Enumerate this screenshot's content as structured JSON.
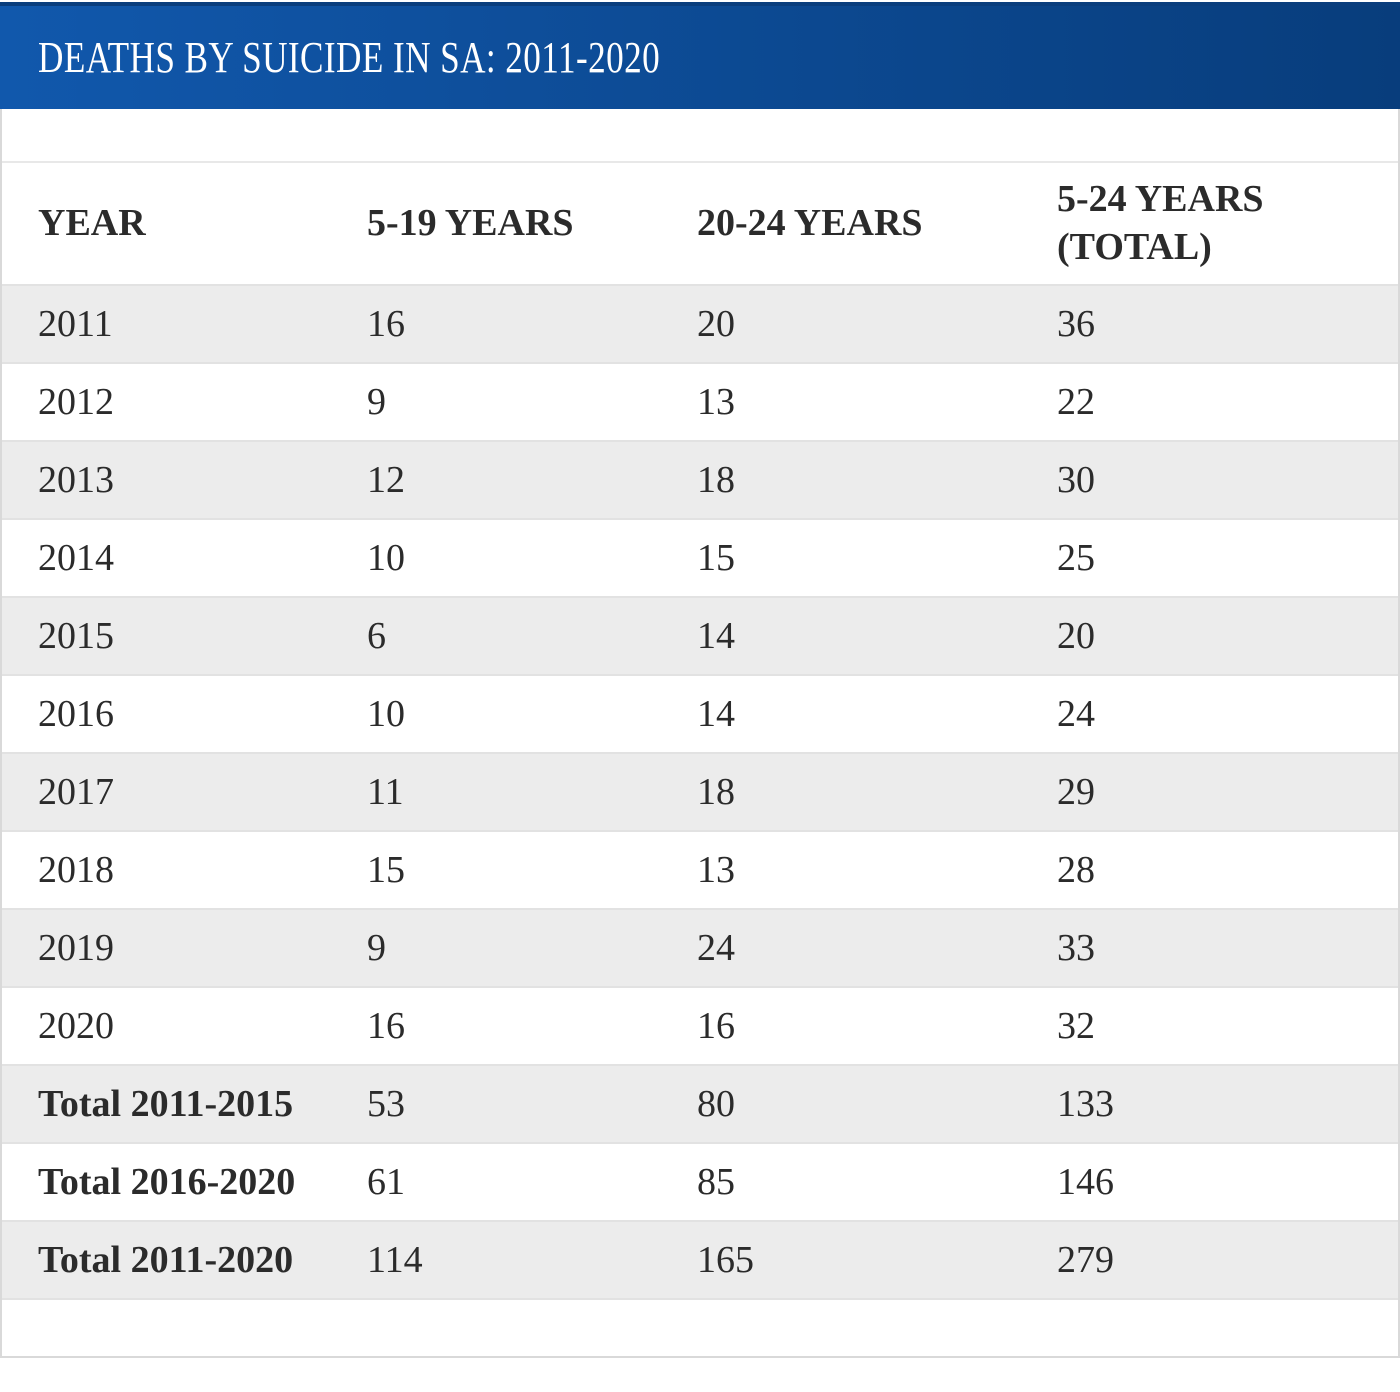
{
  "title_bar": {
    "title": "DEATHS BY SUICIDE IN SA: 2011-2020"
  },
  "colors": {
    "title_bar_gradient_start": "#1158ac",
    "title_bar_gradient_end": "#083d7c",
    "title_bar_top_border": "#0a3e7d",
    "title_text": "#ffffff",
    "alt_row_background": "#ececec",
    "row_divider": "#e2e2e2",
    "outer_border": "#d9d9d9",
    "table_text": "#2b2b2b"
  },
  "chart_data": {
    "type": "table",
    "title": "DEATHS BY SUICIDE IN SA: 2011-2020",
    "columns": [
      "YEAR",
      "5-19 YEARS",
      "20-24 YEARS",
      "5-24 YEARS (TOTAL)"
    ],
    "rows": [
      {
        "label": "2011",
        "values": [
          16,
          20,
          36
        ],
        "is_total": false
      },
      {
        "label": "2012",
        "values": [
          9,
          13,
          22
        ],
        "is_total": false
      },
      {
        "label": "2013",
        "values": [
          12,
          18,
          30
        ],
        "is_total": false
      },
      {
        "label": "2014",
        "values": [
          10,
          15,
          25
        ],
        "is_total": false
      },
      {
        "label": "2015",
        "values": [
          6,
          14,
          20
        ],
        "is_total": false
      },
      {
        "label": "2016",
        "values": [
          10,
          14,
          24
        ],
        "is_total": false
      },
      {
        "label": "2017",
        "values": [
          11,
          18,
          29
        ],
        "is_total": false
      },
      {
        "label": "2018",
        "values": [
          15,
          13,
          28
        ],
        "is_total": false
      },
      {
        "label": "2019",
        "values": [
          9,
          24,
          33
        ],
        "is_total": false
      },
      {
        "label": "2020",
        "values": [
          16,
          16,
          32
        ],
        "is_total": false
      },
      {
        "label": "Total 2011-2015",
        "values": [
          53,
          80,
          133
        ],
        "is_total": true
      },
      {
        "label": "Total 2016-2020",
        "values": [
          61,
          85,
          146
        ],
        "is_total": true
      },
      {
        "label": "Total 2011-2020",
        "values": [
          114,
          165,
          279
        ],
        "is_total": true
      }
    ],
    "layout": {
      "row_striping": "alternating, first data row shaded",
      "header_position": "top",
      "alignment": "left"
    }
  }
}
